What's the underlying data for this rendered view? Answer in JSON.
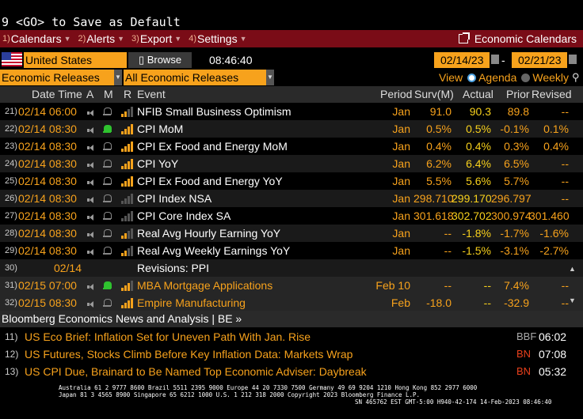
{
  "command_line": "9 <GO> to Save as Default",
  "menu": {
    "items": [
      {
        "num": "1)",
        "label": "Calendars"
      },
      {
        "num": "2)",
        "label": "Alerts"
      },
      {
        "num": "3)",
        "label": "Export"
      },
      {
        "num": "4)",
        "label": "Settings"
      }
    ],
    "right_title": "Economic Calendars"
  },
  "filters": {
    "country": "United States",
    "browse": "Browse",
    "time": "08:46:40",
    "date_from": "02/14/23",
    "date_to": "02/21/23",
    "date_sep": "-",
    "category": "Economic Releases",
    "subcategory": "All Economic Releases",
    "view_label": "View",
    "view_agenda": "Agenda",
    "view_weekly": "Weekly"
  },
  "table": {
    "headers": {
      "datetime": "Date Time",
      "a": "A",
      "m": "M",
      "r": "R",
      "event": "Event",
      "period": "Period",
      "surv": "Surv(M)",
      "actual": "Actual",
      "prior": "Prior",
      "revised": "Revised"
    },
    "rows": [
      {
        "n": "21)",
        "dt": "02/14 06:00",
        "bell": "gray",
        "bars": 2,
        "event": "NFIB Small Business Optimism",
        "period": "Jan",
        "surv": "91.0",
        "actual": "90.3",
        "prior": "89.8",
        "revised": "--"
      },
      {
        "n": "22)",
        "dt": "02/14 08:30",
        "bell": "green",
        "bars": 4,
        "event": "CPI MoM",
        "period": "Jan",
        "surv": "0.5%",
        "actual": "0.5%",
        "prior": "-0.1%",
        "revised": "0.1%"
      },
      {
        "n": "23)",
        "dt": "02/14 08:30",
        "bell": "gray",
        "bars": 4,
        "event": "CPI Ex Food and Energy MoM",
        "period": "Jan",
        "surv": "0.4%",
        "actual": "0.4%",
        "prior": "0.3%",
        "revised": "0.4%"
      },
      {
        "n": "24)",
        "dt": "02/14 08:30",
        "bell": "gray",
        "bars": 4,
        "event": "CPI YoY",
        "period": "Jan",
        "surv": "6.2%",
        "actual": "6.4%",
        "prior": "6.5%",
        "revised": "--"
      },
      {
        "n": "25)",
        "dt": "02/14 08:30",
        "bell": "gray",
        "bars": 4,
        "event": "CPI Ex Food and Energy YoY",
        "period": "Jan",
        "surv": "5.5%",
        "actual": "5.6%",
        "prior": "5.7%",
        "revised": "--"
      },
      {
        "n": "26)",
        "dt": "02/14 08:30",
        "bell": "none",
        "bars": 0,
        "event": "CPI Index NSA",
        "period": "Jan",
        "surv": "298.710",
        "actual": "299.170",
        "prior": "296.797",
        "revised": "--"
      },
      {
        "n": "27)",
        "dt": "02/14 08:30",
        "bell": "none",
        "bars": 0,
        "event": "CPI Core Index SA",
        "period": "Jan",
        "surv": "301.618",
        "actual": "302.702",
        "prior": "300.974",
        "revised": "301.460"
      },
      {
        "n": "28)",
        "dt": "02/14 08:30",
        "bell": "gray",
        "bars": 2,
        "event": "Real Avg Hourly Earning YoY",
        "period": "Jan",
        "surv": "--",
        "actual": "-1.8%",
        "prior": "-1.7%",
        "revised": "-1.6%"
      },
      {
        "n": "29)",
        "dt": "02/14 08:30",
        "bell": "gray",
        "bars": 2,
        "event": "Real Avg Weekly Earnings YoY",
        "period": "Jan",
        "surv": "--",
        "actual": "-1.5%",
        "prior": "-3.1%",
        "revised": "-2.7%"
      },
      {
        "n": "30)",
        "dt": "02/14",
        "bell": "none",
        "bars": 0,
        "event": "Revisions: PPI",
        "period": "",
        "surv": "",
        "actual": "",
        "prior": "",
        "revised": "",
        "revision": true
      },
      {
        "n": "31)",
        "dt": "02/15 07:00",
        "bell": "green",
        "bars": 3,
        "event": "MBA Mortgage Applications",
        "period": "Feb 10",
        "surv": "--",
        "actual": "--",
        "prior": "7.4%",
        "revised": "--",
        "future": true
      },
      {
        "n": "32)",
        "dt": "02/15 08:30",
        "bell": "gray",
        "bars": 4,
        "event": "Empire Manufacturing",
        "period": "Feb",
        "surv": "-18.0",
        "actual": "--",
        "prior": "-32.9",
        "revised": "--",
        "future": true
      }
    ]
  },
  "news": {
    "header": "Bloomberg Economics News and Analysis | BE »",
    "items": [
      {
        "n": "11)",
        "title": "US Eco Brief: Inflation Set for Uneven Path With Jan. Rise",
        "source": "BBF",
        "time": "06:02"
      },
      {
        "n": "12)",
        "title": "US Futures, Stocks Climb Before Key Inflation Data: Markets Wrap",
        "source": "BN",
        "time": "07:08"
      },
      {
        "n": "13)",
        "title": "US CPI Due, Brainard to Be Named Top Economic Adviser: Daybreak",
        "source": "BN",
        "time": "05:32"
      }
    ]
  },
  "footer": {
    "line1": "Australia 61 2 9777 8600 Brazil 5511 2395 9000 Europe 44 20 7330 7500 Germany 49 69 9204 1210 Hong Kong 852 2977 6000",
    "line2": "Japan 81 3 4565 8900       Singapore 65 6212 1000       U.S. 1 212 318 2000            Copyright 2023 Bloomberg Finance L.P.",
    "line3": "SN 465762 EST  GMT-5:00 H940-42-174 14-Feb-2023 08:46:40"
  },
  "colors": {
    "accent": "#f7a21c",
    "menubar": "#7a0c17",
    "alert_green": "#2fc22f",
    "news_source": "#e8401c"
  }
}
